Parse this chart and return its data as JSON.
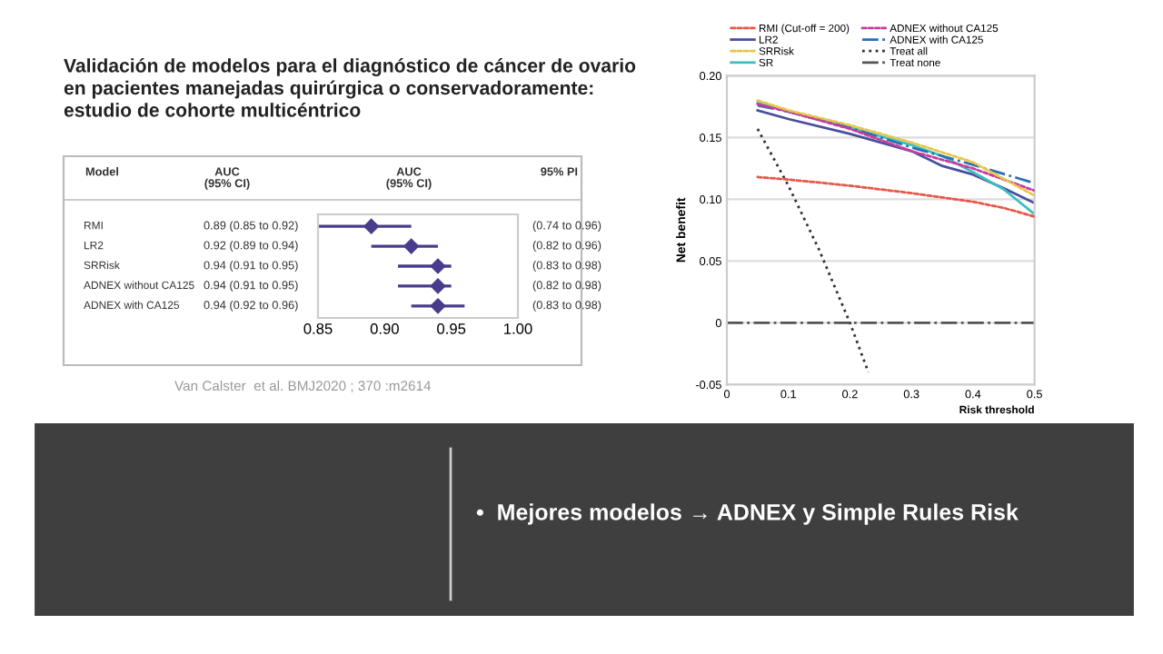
{
  "chart_data": [
    {
      "type": "scatter",
      "orientation": "horizontal",
      "title": "Validación de modelos para el diagnóstico de cáncer de ovario\nen pacientes manejadas quirúrgica o conservadoramente:\nestudio de cohorte multicéntrico",
      "categories": [
        "RMI",
        "LR2",
        "SRRisk",
        "ADNEX without CA125",
        "ADNEX with CA125"
      ],
      "values": [
        0.89,
        0.92,
        0.94,
        0.94,
        0.94
      ],
      "errors": [
        [
          0.85,
          0.92
        ],
        [
          0.89,
          0.94
        ],
        [
          0.91,
          0.95
        ],
        [
          0.91,
          0.95
        ],
        [
          0.92,
          0.96
        ]
      ],
      "value_labels": [
        "0.89 (0.85 to 0.92)",
        "0.92 (0.89 to 0.94)",
        "0.94 (0.91 to 0.95)",
        "0.94 (0.91 to 0.95)",
        "0.94 (0.92 to 0.96)"
      ],
      "color": "#4a3c8c",
      "marker": "diamond",
      "tick_labels": "x",
      "xlim": [
        0.85,
        1.0
      ],
      "xticks": [
        0.85,
        {
          "value": 0.9,
          "label": "0.90"
        },
        0.95,
        {
          "value": 1.0,
          "label": "1.00"
        }
      ],
      "annotations": [
        "Model",
        "AUC\n(95% CI)",
        "AUC\n(95% CI)",
        "95% PI",
        "(0.74 to 0.96)",
        "(0.82 to 0.96)",
        "(0.83 to 0.98)",
        "(0.82 to 0.98)",
        "(0.83 to 0.98)",
        "Van Calster  et al. BMJ2020 ; 370 :m2614"
      ]
    },
    {
      "type": "line",
      "xlabel": "Risk threshold",
      "ylabel": "Net benefit",
      "legend": "top",
      "grid": "y",
      "xlim": [
        0,
        0.5
      ],
      "ylim": [
        -0.05,
        0.2
      ],
      "xticks": [
        0,
        0.1,
        0.2,
        0.3,
        0.4,
        0.5
      ],
      "yticks": [
        {
          "value": -0.05,
          "label": "-0.05"
        },
        0,
        0.05,
        {
          "value": 0.1,
          "label": "0.10"
        },
        0.15,
        {
          "value": 0.2,
          "label": "0.20"
        }
      ],
      "series": [
        {
          "name": "RMI (Cut-off = 200)",
          "color": "#e8574a",
          "line_style": "dashed",
          "x": [
            0.05,
            0.1,
            0.2,
            0.3,
            0.4,
            0.45,
            0.5
          ],
          "values": [
            0.118,
            0.116,
            0.111,
            0.105,
            0.098,
            0.093,
            0.086
          ]
        },
        {
          "name": "LR2",
          "color": "#4a4f9c",
          "line_style": "solid",
          "x": [
            0.05,
            0.1,
            0.2,
            0.3,
            0.35,
            0.4,
            0.45,
            0.5
          ],
          "values": [
            0.172,
            0.165,
            0.153,
            0.139,
            0.127,
            0.12,
            0.109,
            0.097
          ]
        },
        {
          "name": "SRRisk",
          "color": "#e8c547",
          "line_style": "dashed",
          "x": [
            0.05,
            0.1,
            0.2,
            0.3,
            0.4,
            0.5
          ],
          "values": [
            0.18,
            0.172,
            0.16,
            0.146,
            0.13,
            0.103
          ]
        },
        {
          "name": "SR",
          "color": "#3cbfc0",
          "line_style": "solid",
          "x": [
            0.05,
            0.1,
            0.2,
            0.3,
            0.35,
            0.4,
            0.45,
            0.5
          ],
          "values": [
            0.178,
            0.171,
            0.158,
            0.144,
            0.135,
            0.122,
            0.108,
            0.088
          ]
        },
        {
          "name": "ADNEX without CA125",
          "color": "#c83c9c",
          "line_style": "dashed",
          "x": [
            0.05,
            0.1,
            0.2,
            0.3,
            0.4,
            0.5
          ],
          "values": [
            0.177,
            0.171,
            0.157,
            0.139,
            0.125,
            0.107
          ]
        },
        {
          "name": "ADNEX with CA125",
          "color": "#2a6fb0",
          "line_style": "dashdot",
          "x": [
            0.05,
            0.1,
            0.2,
            0.3,
            0.4,
            0.5
          ],
          "values": [
            0.176,
            0.171,
            0.158,
            0.142,
            0.128,
            0.113
          ]
        },
        {
          "name": "Treat all",
          "color": "#333333",
          "line_style": "dotted",
          "x": [
            0.05,
            0.1,
            0.15,
            0.2,
            0.23
          ],
          "values": [
            0.157,
            0.111,
            0.059,
            0,
            -0.04
          ]
        },
        {
          "name": "Treat none",
          "color": "#555555",
          "line_style": "dashdot",
          "x": [
            0,
            0.5
          ],
          "values": [
            0,
            0
          ]
        }
      ]
    },
    {
      "type": "other",
      "annotations": [
        "•  Mejores modelos → ADNEX y Simple Rules Risk"
      ]
    }
  ]
}
